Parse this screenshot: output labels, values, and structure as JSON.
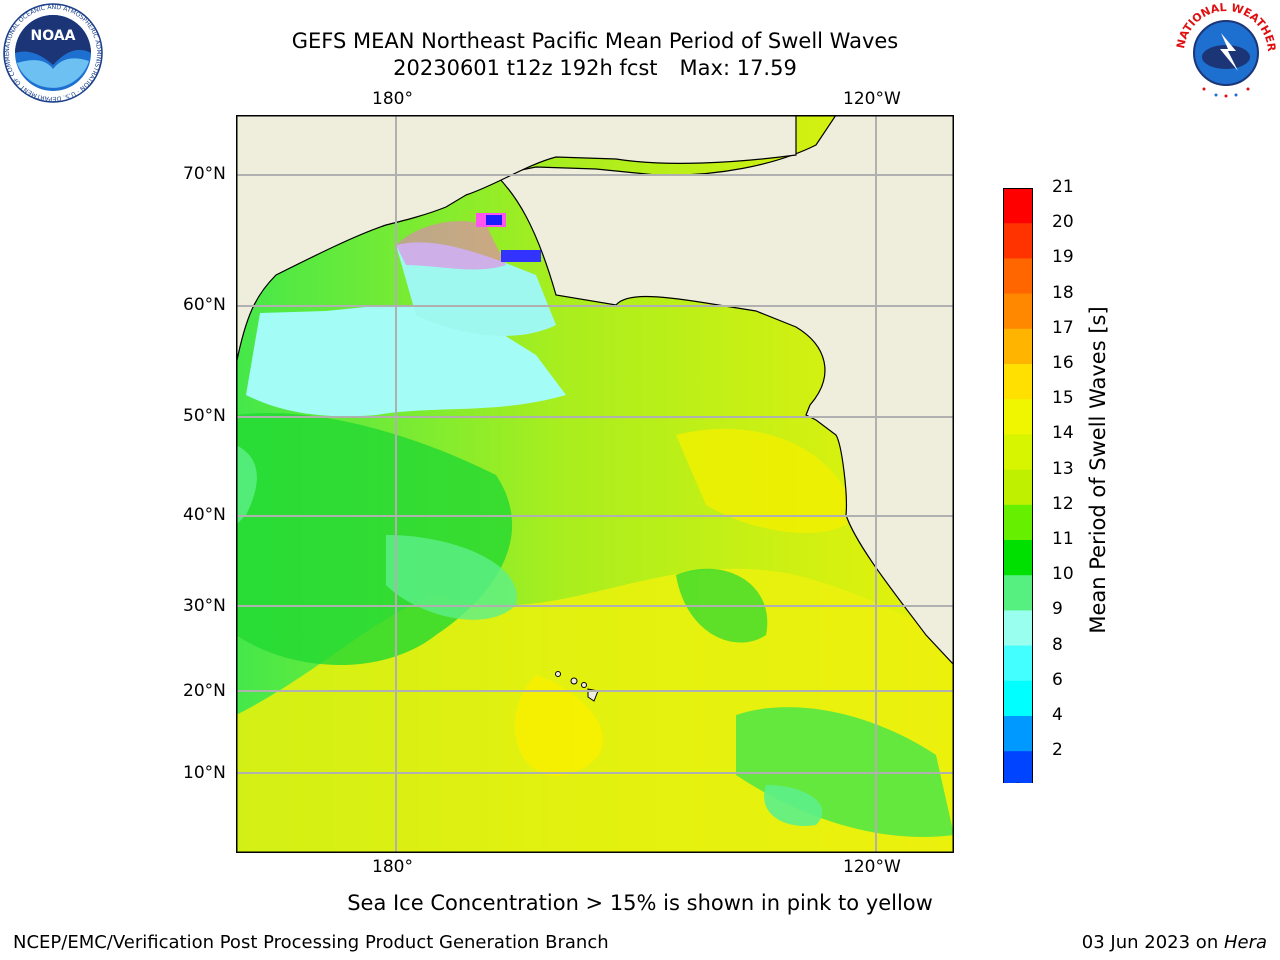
{
  "title": {
    "line1": "GEFS MEAN Northeast Pacific Mean Period of Swell Waves",
    "date_line": "20230601 t12z 192h fcst",
    "max_line": "Max: 17.59"
  },
  "logos": {
    "left": {
      "text": "NOAA",
      "ring": "NATIONAL OCEANIC AND ATMOSPHERIC ADMINISTRATION · U.S. DEPARTMENT OF COMMERCE"
    },
    "right": {
      "ring": "NATIONAL WEATHER SERVICE"
    }
  },
  "map": {
    "lon_labels_top": [
      "180°",
      "120°W"
    ],
    "lon_labels_bottom": [
      "180°",
      "120°W"
    ],
    "lat_labels": [
      "70°N",
      "60°N",
      "50°N",
      "40°N",
      "30°N",
      "20°N",
      "10°N"
    ],
    "land_color": "#efeedd",
    "grid_color": "#b0b0b0"
  },
  "colorbar": {
    "label": "Mean Period of Swell Waves [s]",
    "ticks": [
      "21",
      "20",
      "19",
      "18",
      "17",
      "16",
      "15",
      "14",
      "13",
      "12",
      "11",
      "10",
      "9",
      "8",
      "6",
      "4",
      "2"
    ],
    "colors": [
      "#ff0000",
      "#ff3300",
      "#ff6600",
      "#ff8800",
      "#ffb400",
      "#ffe000",
      "#f0f500",
      "#d8f500",
      "#bff000",
      "#66f000",
      "#00e000",
      "#55f080",
      "#99ffee",
      "#44ffff",
      "#00ffff",
      "#0099ff",
      "#0044ff"
    ],
    "extend_color": "#0000ee"
  },
  "ice_note": "Sea Ice Concentration > 15% is shown in pink to yellow",
  "footer": {
    "left": "NCEP/EMC/Verification Post Processing Product Generation Branch",
    "date": "03 Jun 2023 on ",
    "machine": "Hera"
  }
}
